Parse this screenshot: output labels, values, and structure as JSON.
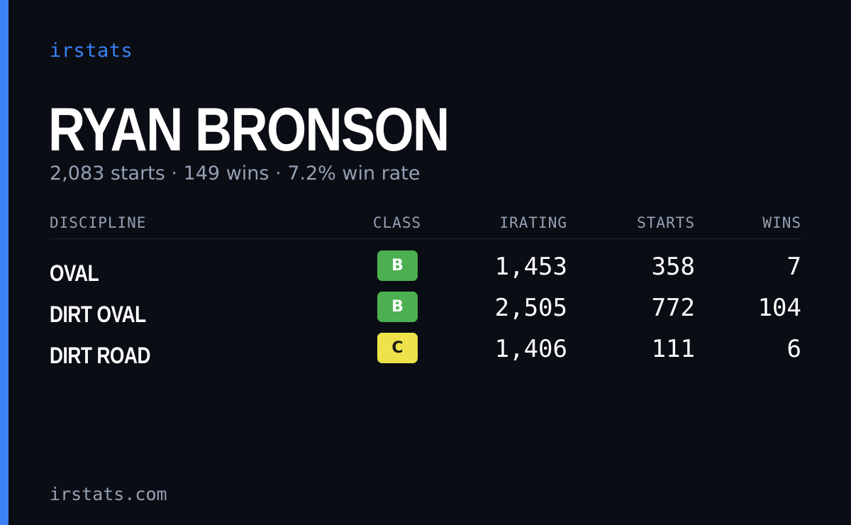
{
  "brand": "irstats",
  "driver": {
    "name": "RYAN BRONSON",
    "summary": "2,083 starts · 149 wins · 7.2% win rate"
  },
  "table": {
    "headers": {
      "discipline": "DISCIPLINE",
      "class": "CLASS",
      "irating": "IRATING",
      "starts": "STARTS",
      "wins": "WINS"
    },
    "rows": [
      {
        "discipline": "OVAL",
        "class": "B",
        "class_color": "#4caf50",
        "class_text_color": "#ffffff",
        "irating": "1,453",
        "starts": "358",
        "wins": "7"
      },
      {
        "discipline": "DIRT OVAL",
        "class": "B",
        "class_color": "#4caf50",
        "class_text_color": "#ffffff",
        "irating": "2,505",
        "starts": "772",
        "wins": "104"
      },
      {
        "discipline": "DIRT ROAD",
        "class": "C",
        "class_color": "#ede24a",
        "class_text_color": "#1a1a1a",
        "irating": "1,406",
        "starts": "111",
        "wins": "6"
      }
    ]
  },
  "footer": {
    "url": "irstats.com"
  },
  "colors": {
    "background": "#0a0d14",
    "accent": "#3b82f6",
    "muted_text": "#94a0b3"
  }
}
